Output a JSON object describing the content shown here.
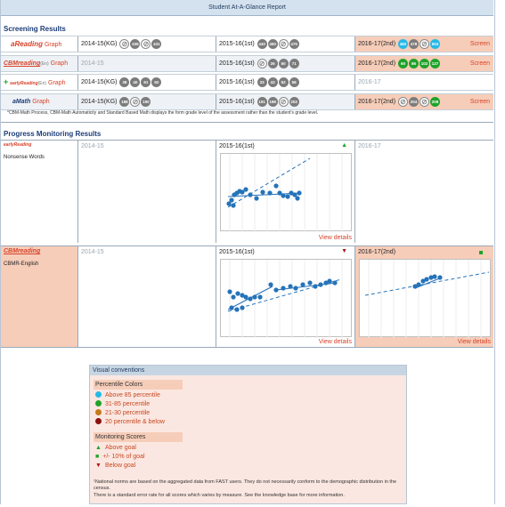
{
  "title": "Student At-A-Glance Report",
  "screening": {
    "heading": "Screening Results",
    "rows": [
      {
        "logo": "aReading",
        "graph_label": "Graph",
        "col1": {
          "label": "2014-15(KG)",
          "badges": [
            {
              "t": "none"
            },
            {
              "t": "gray",
              "v": "435"
            },
            {
              "t": "none"
            },
            {
              "t": "gray",
              "v": "431"
            }
          ]
        },
        "col2": {
          "label": "2015-16(1st)",
          "badges": [
            {
              "t": "gray",
              "v": "440"
            },
            {
              "t": "gray",
              "v": "450"
            },
            {
              "t": "none"
            },
            {
              "t": "gray",
              "v": "475"
            }
          ]
        },
        "col3": {
          "label": "2016-17(2nd)",
          "badges": [
            {
              "t": "cyan",
              "v": "482"
            },
            {
              "t": "gray",
              "v": "478"
            },
            {
              "t": "none"
            },
            {
              "t": "cyan",
              "v": "504"
            }
          ]
        },
        "screen_label": "Screen"
      },
      {
        "logo": "CBMreading",
        "logo_suffix": "(En)",
        "graph_label": "Graph",
        "col1": {
          "label": "2014-15",
          "badges": []
        },
        "col2": {
          "label": "2015-16(1st)",
          "badges": [
            {
              "t": "none"
            },
            {
              "t": "gray",
              "v": "26"
            },
            {
              "t": "gray",
              "v": "50"
            },
            {
              "t": "gray",
              "v": "71"
            }
          ]
        },
        "col3": {
          "label": "2016-17(2nd)",
          "badges": [
            {
              "t": "green",
              "v": "60"
            },
            {
              "t": "green",
              "v": "86"
            },
            {
              "t": "green",
              "v": "102"
            },
            {
              "t": "green",
              "v": "127"
            }
          ]
        },
        "screen_label": "Screen"
      },
      {
        "logo": "earlyReading",
        "logo_suffix": "(En)",
        "graph_label": "Graph",
        "col1": {
          "label": "2014-15(KG)",
          "badges": [
            {
              "t": "gray",
              "v": "38"
            },
            {
              "t": "gray",
              "v": "40"
            },
            {
              "t": "gray",
              "v": "61"
            },
            {
              "t": "gray",
              "v": "62"
            }
          ]
        },
        "col2": {
          "label": "2015-16(1st)",
          "badges": [
            {
              "t": "gray",
              "v": "33"
            },
            {
              "t": "gray",
              "v": "43"
            },
            {
              "t": "gray",
              "v": "52"
            },
            {
              "t": "gray",
              "v": "58"
            }
          ]
        },
        "col3": {
          "label": "2016-17",
          "badges": []
        }
      },
      {
        "logo": "aMath",
        "graph_label": "Graph",
        "col1": {
          "label": "2014-15(KG)",
          "badges": [
            {
              "t": "gray",
              "v": "188"
            },
            {
              "t": "none"
            },
            {
              "t": "gray",
              "v": "190"
            }
          ]
        },
        "col2": {
          "label": "2015-16(1st)",
          "badges": [
            {
              "t": "gray",
              "v": "191"
            },
            {
              "t": "gray",
              "v": "198"
            },
            {
              "t": "none"
            },
            {
              "t": "gray",
              "v": "202"
            }
          ]
        },
        "col3": {
          "label": "2016-17(2nd)",
          "badges": [
            {
              "t": "none"
            },
            {
              "t": "gray",
              "v": "204"
            },
            {
              "t": "none"
            },
            {
              "t": "green",
              "v": "208"
            }
          ]
        },
        "screen_label": "Screen"
      }
    ],
    "footnote": "*CBM-Math Process, CBM-Math Automaticity and Standard Based Math displays the form grade level of the assessment rather than the student's grade level."
  },
  "progress": {
    "heading": "Progress Monitoring Results",
    "blocks": [
      {
        "logo": "earlyReading",
        "measure": "Nonsense Words",
        "col1": "2014-15",
        "col2": "2015-16(1st)",
        "col2_indicator": "▲",
        "col3": "2016-17",
        "view_details": "View details"
      },
      {
        "logo": "CBMreading",
        "measure": "CBMR-English",
        "col1": "2014-15",
        "col2": "2015-16(1st)",
        "col2_indicator": "▼",
        "col3": "2016-17(2nd)",
        "view_details": "View details",
        "view_details_2": "View details"
      }
    ]
  },
  "legend": {
    "heading": "Visual conventions",
    "percentile_heading": "Percentile Colors",
    "percentile_items": [
      {
        "label": "Above 85 percentile",
        "color": "#25b9e6"
      },
      {
        "label": "31-85 percentile",
        "color": "#1fa32a"
      },
      {
        "label": "21-30 percentile",
        "color": "#c47a1c"
      },
      {
        "label": "20 percentile & below",
        "color": "#8c1010"
      }
    ],
    "monitoring_heading": "Monitoring Scores",
    "monitoring_items": [
      {
        "symbol": "▲",
        "label": "Above goal",
        "color": "#1fa32a"
      },
      {
        "symbol": "■",
        "label": "+/- 10% of goal",
        "color": "#1fa32a"
      },
      {
        "symbol": "▼",
        "label": "Below goal",
        "color": "#b01818"
      }
    ],
    "footnote_1": "¹National norms are based on the aggregated data from FAST users. They do not necessarily conform to the demographic distribution in the census.",
    "footnote_2": "There is a standard error rate for all scores which varies by measure. See the knowledge base for more information."
  }
}
